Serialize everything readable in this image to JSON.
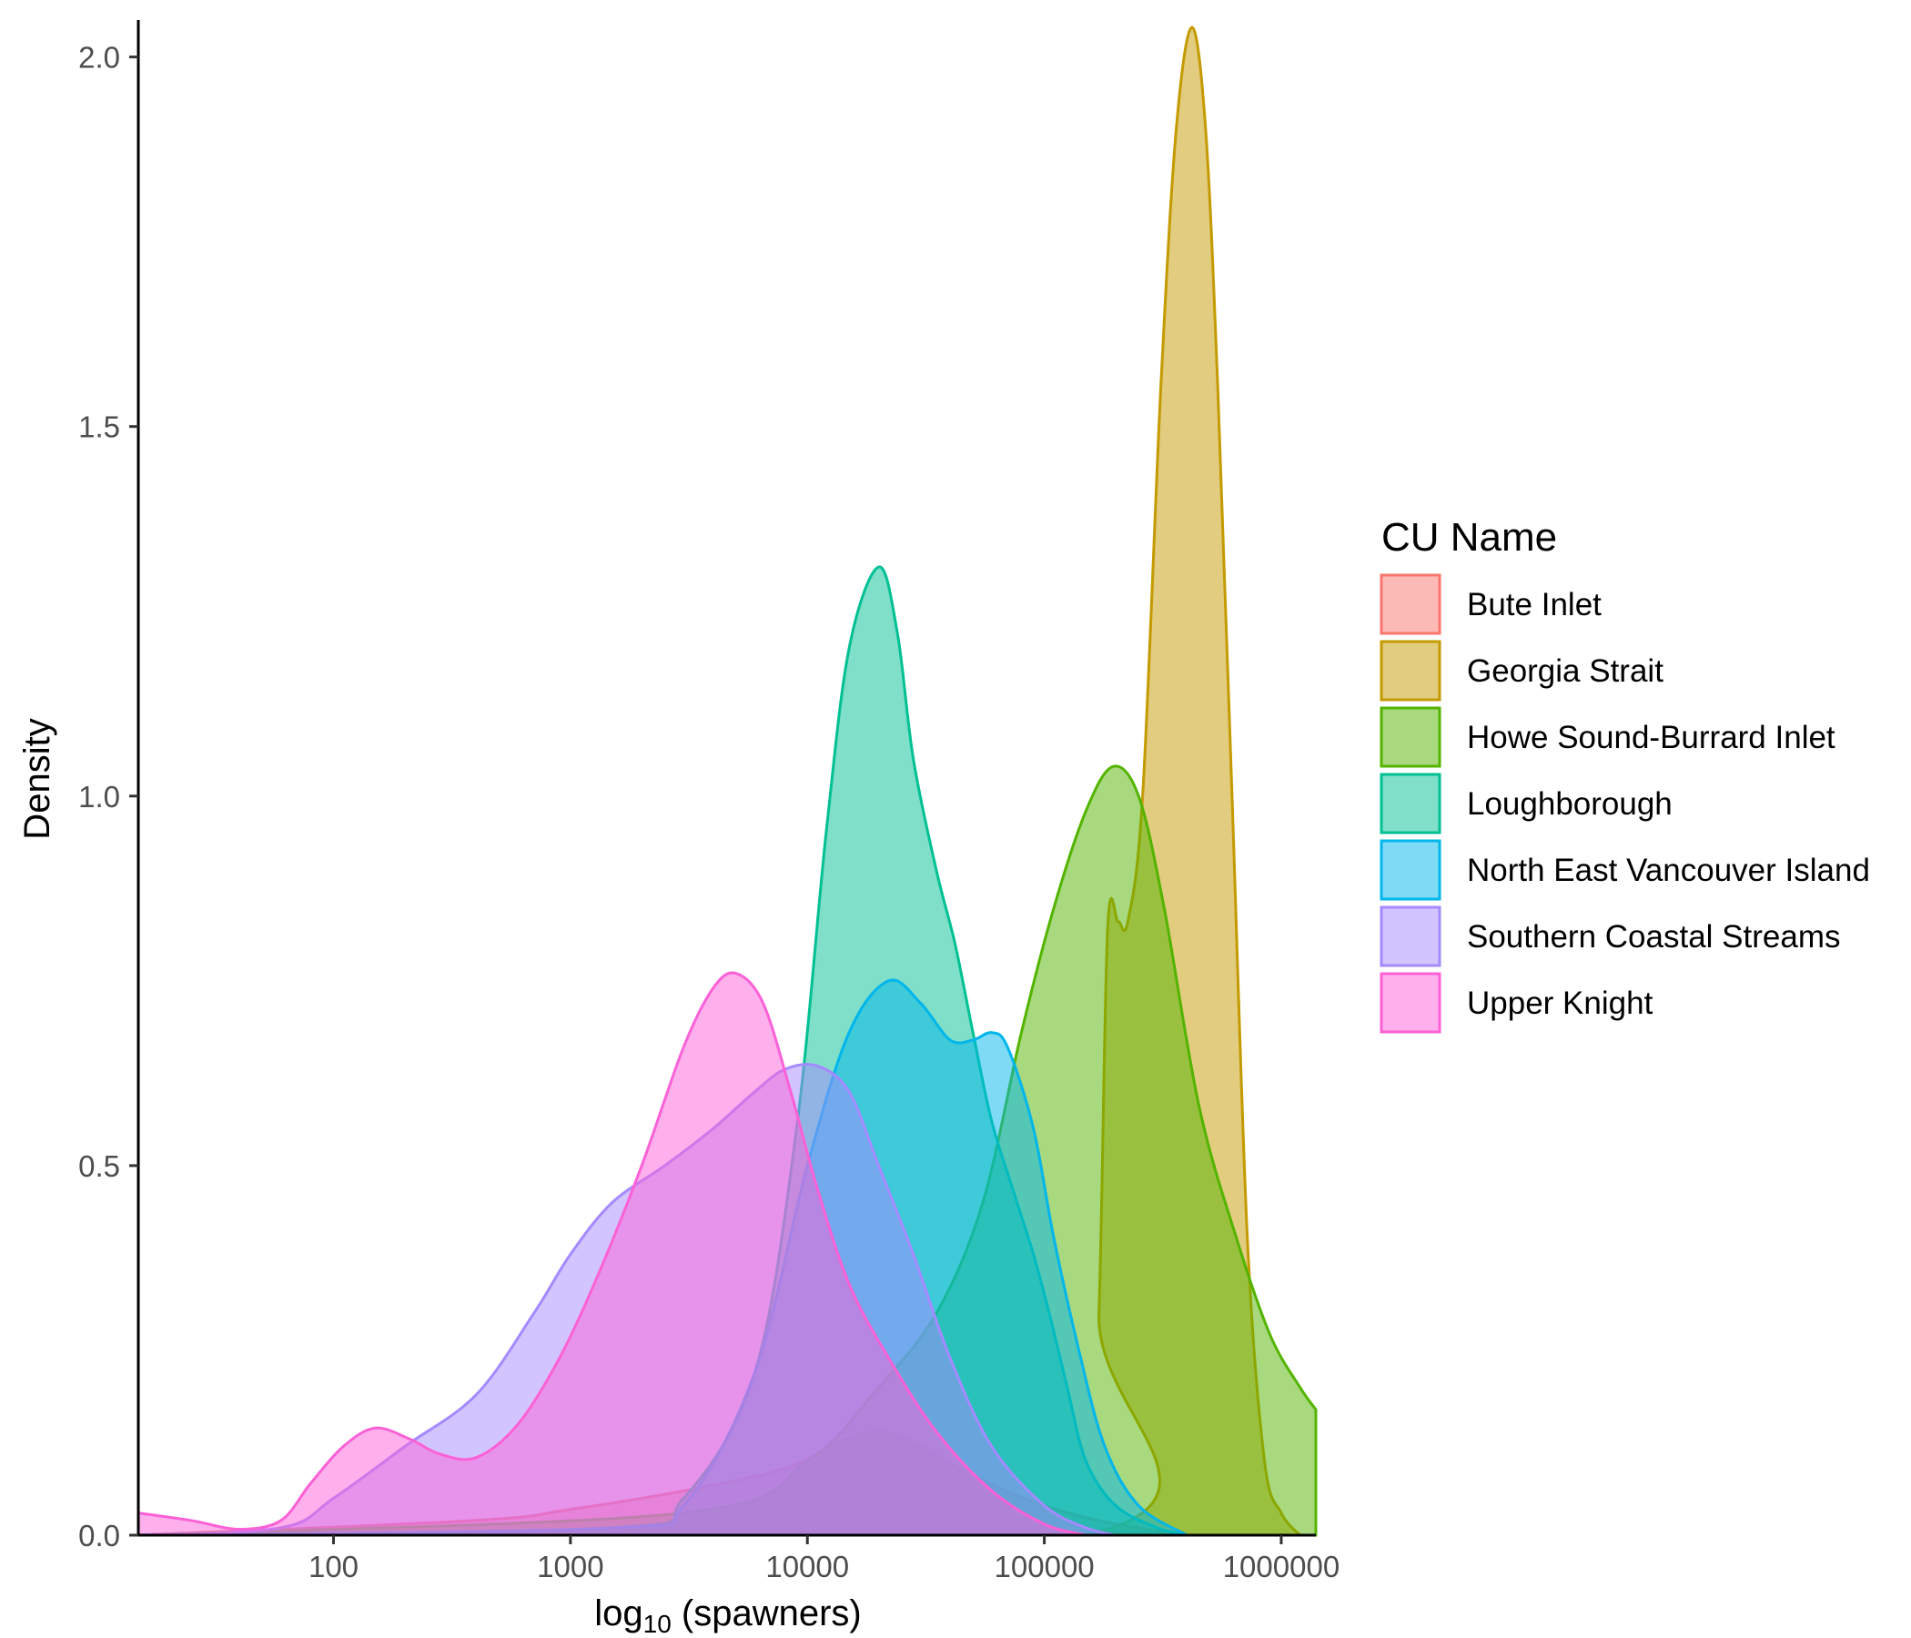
{
  "chart_data": {
    "type": "area",
    "title": "",
    "xlabel_main": "log",
    "xlabel_sub": "10",
    "xlabel_rest": " (spawners)",
    "ylabel": "Density",
    "x_scale": "log10",
    "xlim": [
      15,
      1400000
    ],
    "ylim": [
      0,
      2.05
    ],
    "x_ticks": [
      100,
      1000,
      10000,
      100000,
      1000000
    ],
    "x_tick_labels": [
      "100",
      "1000",
      "10000",
      "100000",
      "1000000"
    ],
    "y_ticks": [
      0,
      0.5,
      1,
      1.5,
      2
    ],
    "y_tick_labels": [
      "0.0",
      "0.5",
      "1.0",
      "1.5",
      "2.0"
    ],
    "legend": {
      "title": "CU Name",
      "position": "right"
    },
    "series": [
      {
        "name": "Bute Inlet",
        "color": "#F8766D",
        "points": [
          [
            15,
            0
          ],
          [
            400,
            0.02
          ],
          [
            1000,
            0.035
          ],
          [
            3000,
            0.06
          ],
          [
            8000,
            0.09
          ],
          [
            20000,
            0.14
          ],
          [
            50000,
            0.08
          ],
          [
            100000,
            0.04
          ],
          [
            200000,
            0.015
          ],
          [
            400000,
            0
          ]
        ]
      },
      {
        "name": "Georgia Strait",
        "color": "#C49A00",
        "points": [
          [
            15,
            0
          ],
          [
            150000,
            0
          ],
          [
            170000,
            0.3
          ],
          [
            185000,
            0.82
          ],
          [
            205000,
            0.83
          ],
          [
            225000,
            0.83
          ],
          [
            260000,
            1.0
          ],
          [
            310000,
            1.55
          ],
          [
            360000,
            1.9
          ],
          [
            420000,
            2.04
          ],
          [
            480000,
            1.9
          ],
          [
            540000,
            1.55
          ],
          [
            620000,
            1.0
          ],
          [
            720000,
            0.4
          ],
          [
            850000,
            0.1
          ],
          [
            1000000,
            0.03
          ],
          [
            1200000,
            0
          ]
        ]
      },
      {
        "name": "Howe Sound-Burrard Inlet",
        "color": "#53B400",
        "points": [
          [
            15,
            0
          ],
          [
            3000,
            0.03
          ],
          [
            10000,
            0.1
          ],
          [
            20000,
            0.2
          ],
          [
            35000,
            0.3
          ],
          [
            55000,
            0.45
          ],
          [
            80000,
            0.68
          ],
          [
            110000,
            0.85
          ],
          [
            150000,
            0.98
          ],
          [
            195000,
            1.04
          ],
          [
            250000,
            1.0
          ],
          [
            320000,
            0.85
          ],
          [
            450000,
            0.58
          ],
          [
            650000,
            0.4
          ],
          [
            900000,
            0.27
          ],
          [
            1200000,
            0.2
          ],
          [
            1400000,
            0.17
          ]
        ]
      },
      {
        "name": "Loughborough",
        "color": "#00C094",
        "points": [
          [
            15,
            0
          ],
          [
            1500,
            0.01
          ],
          [
            3000,
            0.05
          ],
          [
            6000,
            0.22
          ],
          [
            9000,
            0.55
          ],
          [
            12000,
            0.95
          ],
          [
            15000,
            1.2
          ],
          [
            20000,
            1.31
          ],
          [
            24000,
            1.22
          ],
          [
            28000,
            1.05
          ],
          [
            35000,
            0.9
          ],
          [
            42000,
            0.8
          ],
          [
            50000,
            0.68
          ],
          [
            60000,
            0.56
          ],
          [
            75000,
            0.46
          ],
          [
            90000,
            0.38
          ],
          [
            105000,
            0.3
          ],
          [
            125000,
            0.2
          ],
          [
            150000,
            0.1
          ],
          [
            200000,
            0.04
          ],
          [
            300000,
            0.01
          ],
          [
            400000,
            0
          ]
        ]
      },
      {
        "name": "North East Vancouver Island",
        "color": "#00B6EB",
        "points": [
          [
            15,
            0
          ],
          [
            1500,
            0.01
          ],
          [
            3000,
            0.04
          ],
          [
            6000,
            0.22
          ],
          [
            10000,
            0.5
          ],
          [
            15000,
            0.68
          ],
          [
            22000,
            0.75
          ],
          [
            30000,
            0.72
          ],
          [
            40000,
            0.67
          ],
          [
            50000,
            0.67
          ],
          [
            60000,
            0.68
          ],
          [
            70000,
            0.66
          ],
          [
            90000,
            0.55
          ],
          [
            110000,
            0.4
          ],
          [
            140000,
            0.25
          ],
          [
            180000,
            0.12
          ],
          [
            250000,
            0.04
          ],
          [
            400000,
            0
          ]
        ]
      },
      {
        "name": "Southern Coastal Streams",
        "color": "#A58AFF",
        "points": [
          [
            15,
            0
          ],
          [
            60,
            0.01
          ],
          [
            100,
            0.05
          ],
          [
            200,
            0.12
          ],
          [
            400,
            0.19
          ],
          [
            700,
            0.3
          ],
          [
            1000,
            0.38
          ],
          [
            1500,
            0.45
          ],
          [
            2500,
            0.5
          ],
          [
            4000,
            0.55
          ],
          [
            6000,
            0.6
          ],
          [
            8000,
            0.63
          ],
          [
            11000,
            0.635
          ],
          [
            15000,
            0.6
          ],
          [
            20000,
            0.5
          ],
          [
            28000,
            0.38
          ],
          [
            40000,
            0.24
          ],
          [
            60000,
            0.12
          ],
          [
            100000,
            0.04
          ],
          [
            150000,
            0.01
          ],
          [
            200000,
            0
          ]
        ]
      },
      {
        "name": "Upper Knight",
        "color": "#FB61D7",
        "points": [
          [
            15,
            0.03
          ],
          [
            25,
            0.02
          ],
          [
            40,
            0.008
          ],
          [
            60,
            0.02
          ],
          [
            80,
            0.07
          ],
          [
            110,
            0.12
          ],
          [
            150,
            0.145
          ],
          [
            210,
            0.13
          ],
          [
            280,
            0.11
          ],
          [
            400,
            0.105
          ],
          [
            600,
            0.15
          ],
          [
            900,
            0.24
          ],
          [
            1300,
            0.35
          ],
          [
            2000,
            0.5
          ],
          [
            3000,
            0.66
          ],
          [
            4000,
            0.74
          ],
          [
            5000,
            0.76
          ],
          [
            6500,
            0.72
          ],
          [
            8500,
            0.6
          ],
          [
            11000,
            0.47
          ],
          [
            15000,
            0.34
          ],
          [
            22000,
            0.24
          ],
          [
            35000,
            0.14
          ],
          [
            60000,
            0.06
          ],
          [
            100000,
            0.015
          ],
          [
            150000,
            0
          ]
        ]
      }
    ]
  }
}
